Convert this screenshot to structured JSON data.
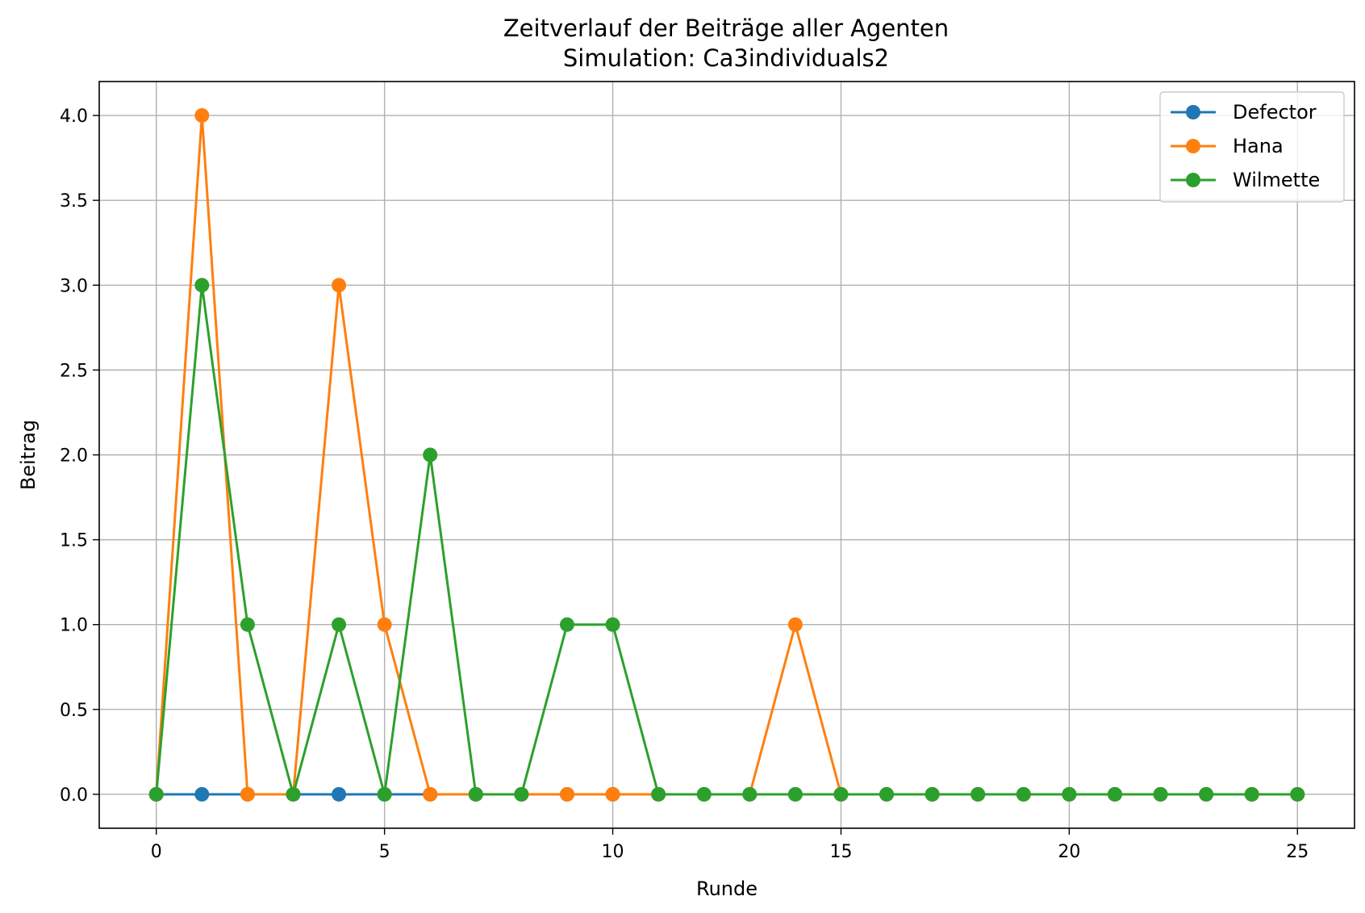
{
  "chart_data": {
    "type": "line",
    "title": "Zeitverlauf der Beiträge aller Agenten",
    "subtitle": "Simulation: Ca3individuals2",
    "xlabel": "Runde",
    "ylabel": "Beitrag",
    "xlim": [
      -1.25,
      26.25
    ],
    "ylim": [
      -0.2,
      4.2
    ],
    "xticks": [
      0,
      5,
      10,
      15,
      20,
      25
    ],
    "xtick_labels": [
      "0",
      "5",
      "10",
      "15",
      "20",
      "25"
    ],
    "yticks": [
      0,
      0.5,
      1,
      1.5,
      2,
      2.5,
      3,
      3.5,
      4
    ],
    "ytick_labels": [
      "0.0",
      "0.5",
      "1.0",
      "1.5",
      "2.0",
      "2.5",
      "3.0",
      "3.5",
      "4.0"
    ],
    "grid": true,
    "legend_position": "top-right",
    "x": [
      0,
      1,
      2,
      3,
      4,
      5,
      6,
      7,
      8,
      9,
      10,
      11,
      12,
      13,
      14,
      15,
      16,
      17,
      18,
      19,
      20,
      21,
      22,
      23,
      24,
      25
    ],
    "series": [
      {
        "name": "Defector",
        "color": "#1f77b4",
        "values": [
          0,
          0,
          0,
          0,
          0,
          0,
          0,
          0,
          0,
          0,
          0,
          0,
          0,
          0,
          0,
          0,
          0,
          0,
          0,
          0,
          0,
          0,
          0,
          0,
          0,
          0
        ]
      },
      {
        "name": "Hana",
        "color": "#ff7f0e",
        "values": [
          0,
          4,
          0,
          0,
          3,
          1,
          0,
          0,
          0,
          0,
          0,
          0,
          0,
          0,
          1,
          0,
          0,
          0,
          0,
          0,
          0,
          0,
          0,
          0,
          0,
          0
        ]
      },
      {
        "name": "Wilmette",
        "color": "#2ca02c",
        "values": [
          0,
          3,
          1,
          0,
          1,
          0,
          2,
          0,
          0,
          1,
          1,
          0,
          0,
          0,
          0,
          0,
          0,
          0,
          0,
          0,
          0,
          0,
          0,
          0,
          0,
          0
        ]
      }
    ]
  }
}
